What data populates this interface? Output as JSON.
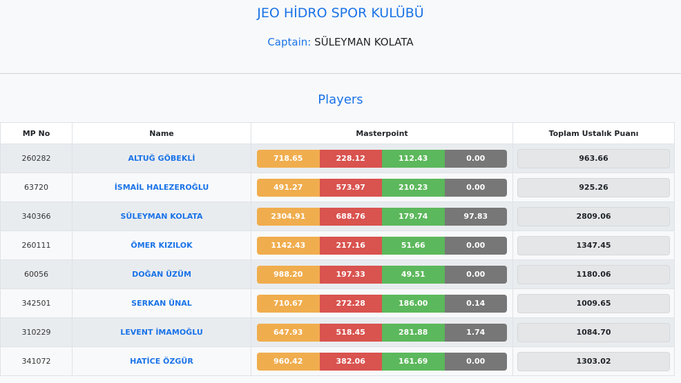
{
  "header": {
    "club_title": "JEO HİDRO SPOR KULÜBÜ",
    "captain_label": "Captain:",
    "captain_name": "SÜLEYMAN KOLATA"
  },
  "section_title": "Players",
  "table": {
    "columns": [
      "MP No",
      "Name",
      "Masterpoint",
      "Toplam Ustalık Puanı"
    ],
    "segment_colors": [
      "#f0ad4e",
      "#d9534f",
      "#5cb85c",
      "#777777"
    ],
    "rows": [
      {
        "mp_no": "260282",
        "name": "ALTUĞ GÖBEKLİ",
        "points": [
          "718.65",
          "228.12",
          "112.43",
          "0.00"
        ],
        "total": "963.66"
      },
      {
        "mp_no": "63720",
        "name": "İSMAİL HALEZEROĞLU",
        "points": [
          "491.27",
          "573.97",
          "210.23",
          "0.00"
        ],
        "total": "925.26"
      },
      {
        "mp_no": "340366",
        "name": "SÜLEYMAN KOLATA",
        "points": [
          "2304.91",
          "688.76",
          "179.74",
          "97.83"
        ],
        "total": "2809.06"
      },
      {
        "mp_no": "260111",
        "name": "ÖMER KIZILOK",
        "points": [
          "1142.43",
          "217.16",
          "51.66",
          "0.00"
        ],
        "total": "1347.45"
      },
      {
        "mp_no": "60056",
        "name": "DOĞAN ÜZÜM",
        "points": [
          "988.20",
          "197.33",
          "49.51",
          "0.00"
        ],
        "total": "1180.06"
      },
      {
        "mp_no": "342501",
        "name": "SERKAN ÜNAL",
        "points": [
          "710.67",
          "272.28",
          "186.00",
          "0.14"
        ],
        "total": "1009.65"
      },
      {
        "mp_no": "310229",
        "name": "LEVENT İMAMOĞLU",
        "points": [
          "647.93",
          "518.45",
          "281.88",
          "1.74"
        ],
        "total": "1084.70"
      },
      {
        "mp_no": "341072",
        "name": "HATİCE ÖZGÜR",
        "points": [
          "960.42",
          "382.06",
          "161.69",
          "0.00"
        ],
        "total": "1303.02"
      }
    ]
  }
}
